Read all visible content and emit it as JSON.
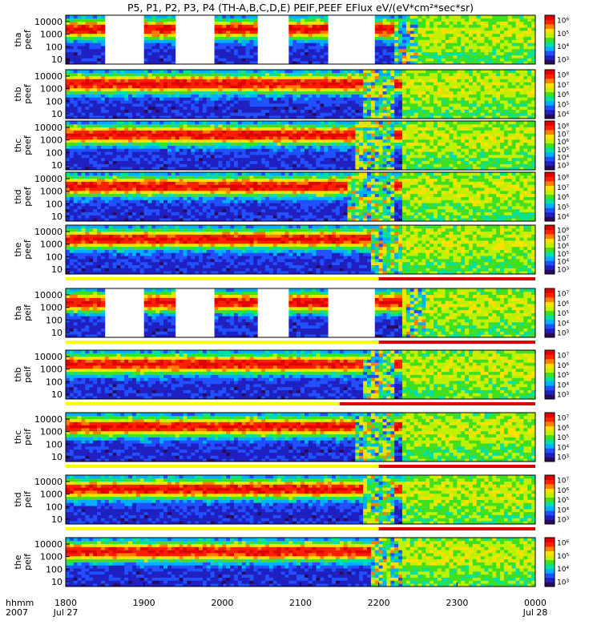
{
  "chart_data": {
    "type": "heatmap",
    "title": "P5, P1, P2, P3, P4 (TH-A,B,C,D,E) PEIF,PEEF EFlux eV/(eV*cm²*sec*sr)",
    "x_axis": {
      "row_label_1": "hhmm",
      "row_label_2": "2007",
      "range": [
        "1800",
        "0000"
      ],
      "ticks": [
        {
          "value": 0,
          "label": "1800",
          "sub": "Jul 27"
        },
        {
          "value": 1,
          "label": "1900",
          "sub": ""
        },
        {
          "value": 2,
          "label": "2000",
          "sub": ""
        },
        {
          "value": 3,
          "label": "2100",
          "sub": ""
        },
        {
          "value": 4,
          "label": "2200",
          "sub": ""
        },
        {
          "value": 5,
          "label": "2300",
          "sub": ""
        },
        {
          "value": 6,
          "label": "0000",
          "sub": "Jul 28"
        }
      ]
    },
    "y_ticks": [
      "10000",
      "1000",
      "100",
      "10"
    ],
    "colors": {
      "palette": [
        "#2a0a5a",
        "#2020c0",
        "#2050ff",
        "#00b0ff",
        "#00e0a0",
        "#40e020",
        "#c0f000",
        "#ffe000",
        "#ff8000",
        "#ff2000",
        "#e00000"
      ],
      "flag_yellow": "#ffff00",
      "flag_red": "#e00000"
    },
    "panels": [
      {
        "name": "tha peef",
        "label_1": "tha",
        "label_2": "peef",
        "colorbar_ticks": [
          "10⁶",
          "10⁵",
          "10⁴",
          "10³"
        ],
        "gaps": [
          [
            0.5,
            1.0
          ],
          [
            1.4,
            1.9
          ],
          [
            2.45,
            2.85
          ],
          [
            3.35,
            3.95
          ]
        ],
        "disturbance": [
          [
            4.2,
            4.5
          ]
        ],
        "quiet_after": 4.5
      },
      {
        "name": "thb peef",
        "label_1": "thb",
        "label_2": "peef",
        "colorbar_ticks": [
          "10⁸",
          "10⁷",
          "10⁶",
          "10⁵",
          "10⁴"
        ],
        "gaps": [],
        "disturbance": [
          [
            3.8,
            4.2
          ]
        ],
        "quiet_after": 4.3
      },
      {
        "name": "thc peef",
        "label_1": "thc",
        "label_2": "peef",
        "colorbar_ticks": [
          "10⁸",
          "10⁷",
          "10⁶",
          "10⁵",
          "10⁴",
          "10³"
        ],
        "gaps": [],
        "disturbance": [
          [
            3.7,
            4.2
          ]
        ],
        "quiet_after": 4.3
      },
      {
        "name": "thd peef",
        "label_1": "thd",
        "label_2": "peef",
        "colorbar_ticks": [
          "10⁸",
          "10⁷",
          "10⁶",
          "10⁵",
          "10⁴"
        ],
        "gaps": [],
        "disturbance": [
          [
            3.6,
            4.2
          ]
        ],
        "quiet_after": 4.3
      },
      {
        "name": "the peef",
        "label_1": "the",
        "label_2": "peef",
        "colorbar_ticks": [
          "10⁸",
          "10⁷",
          "10⁶",
          "10⁵",
          "10⁴",
          "10³"
        ],
        "gaps": [],
        "disturbance": [
          [
            3.9,
            4.3
          ]
        ],
        "quiet_after": 4.3
      },
      {
        "name": "tha peif",
        "label_1": "tha",
        "label_2": "peif",
        "colorbar_ticks": [
          "10⁷",
          "10⁶",
          "10⁵",
          "10⁴",
          "10³"
        ],
        "gaps": [
          [
            0.5,
            1.0
          ],
          [
            1.4,
            1.9
          ],
          [
            2.45,
            2.85
          ],
          [
            3.35,
            3.95
          ]
        ],
        "disturbance": [
          [
            4.3,
            4.6
          ]
        ],
        "quiet_after": 4.4
      },
      {
        "name": "thb peif",
        "label_1": "thb",
        "label_2": "peif",
        "colorbar_ticks": [
          "10⁷",
          "10⁶",
          "10⁵",
          "10⁴",
          "10³"
        ],
        "gaps": [],
        "disturbance": [
          [
            3.8,
            4.2
          ]
        ],
        "quiet_after": 4.3
      },
      {
        "name": "thc peif",
        "label_1": "thc",
        "label_2": "peif",
        "colorbar_ticks": [
          "10⁷",
          "10⁶",
          "10⁵",
          "10⁴",
          "10³"
        ],
        "gaps": [],
        "disturbance": [
          [
            3.7,
            4.2
          ]
        ],
        "quiet_after": 4.3
      },
      {
        "name": "thd peif",
        "label_1": "thd",
        "label_2": "peif",
        "colorbar_ticks": [
          "10⁷",
          "10⁶",
          "10⁵",
          "10⁴",
          "10³"
        ],
        "gaps": [],
        "disturbance": [
          [
            3.8,
            4.2
          ]
        ],
        "quiet_after": 4.3
      },
      {
        "name": "the peif",
        "label_1": "the",
        "label_2": "peif",
        "colorbar_ticks": [
          "10⁶",
          "10⁵",
          "10⁴",
          "10³"
        ],
        "gaps": [],
        "disturbance": [
          [
            3.9,
            4.3
          ]
        ],
        "quiet_after": 4.3
      }
    ],
    "flag_bars": [
      {
        "after_panel": 4,
        "red_start": 4.0
      },
      {
        "after_panel": 5,
        "red_start": 4.0
      },
      {
        "after_panel": 6,
        "red_start": 3.5
      },
      {
        "after_panel": 7,
        "red_start": 4.0
      },
      {
        "after_panel": 8,
        "red_start": 4.0
      }
    ]
  }
}
